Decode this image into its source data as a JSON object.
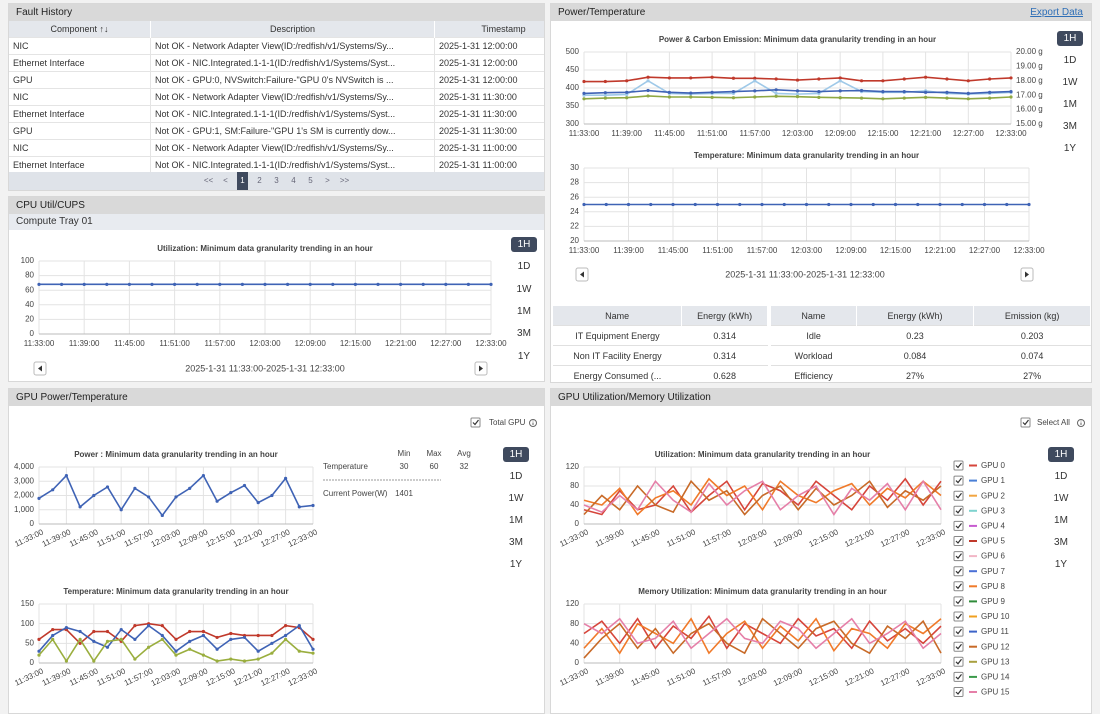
{
  "fault_history": {
    "title": "Fault History",
    "columns": [
      "Component ↑↓",
      "Description",
      "Timestamp"
    ],
    "rows": [
      [
        "NIC",
        "Not OK - Network Adapter View(ID:/redfish/v1/Systems/Sy...",
        "2025-1-31 12:00:00"
      ],
      [
        "Ethernet Interface",
        "Not OK - NIC.Integrated.1-1-1(ID:/redfish/v1/Systems/Syst...",
        "2025-1-31 12:00:00"
      ],
      [
        "GPU",
        "Not OK - GPU:0, NVSwitch:Failure-\"GPU 0's NVSwitch is ...",
        "2025-1-31 12:00:00"
      ],
      [
        "NIC",
        "Not OK - Network Adapter View(ID:/redfish/v1/Systems/Sy...",
        "2025-1-31 11:30:00"
      ],
      [
        "Ethernet Interface",
        "Not OK - NIC.Integrated.1-1-1(ID:/redfish/v1/Systems/Syst...",
        "2025-1-31 11:30:00"
      ],
      [
        "GPU",
        "Not OK - GPU:1, SM:Failure-\"GPU 1's SM is currently dow...",
        "2025-1-31 11:30:00"
      ],
      [
        "NIC",
        "Not OK - Network Adapter View(ID:/redfish/v1/Systems/Sy...",
        "2025-1-31 11:00:00"
      ],
      [
        "Ethernet Interface",
        "Not OK - NIC.Integrated.1-1-1(ID:/redfish/v1/Systems/Syst...",
        "2025-1-31 11:00:00"
      ]
    ],
    "pagination": [
      "<<",
      "<",
      "1",
      "2",
      "3",
      "4",
      "5",
      ">",
      ">>"
    ],
    "current_page": "1"
  },
  "cpu": {
    "title": "CPU Util/CUPS",
    "subtitle": "Compute Tray 01",
    "ranges": [
      "1H",
      "1D",
      "1W",
      "1M",
      "3M",
      "1Y"
    ],
    "selected": "1H",
    "period": "2025-1-31 11:33:00-2025-1-31 12:33:00",
    "chart": {
      "type": "line",
      "title": "Utilization: Minimum data granularity trending in an hour",
      "categories": [
        "11:33:00",
        null,
        "11:39:00",
        null,
        "11:45:00",
        null,
        "11:51:00",
        null,
        "11:57:00",
        null,
        "12:03:00",
        null,
        "12:09:00",
        null,
        "12:15:00",
        null,
        "12:21:00",
        null,
        "12:27:00",
        null,
        "12:33:00"
      ],
      "series": [
        {
          "color": "#3f63b5",
          "values": [
            68,
            68,
            68,
            68,
            68,
            68,
            68,
            68,
            68,
            68,
            68,
            68,
            68,
            68,
            68,
            68,
            68,
            68,
            68,
            68,
            68
          ]
        }
      ],
      "ylim": [
        0,
        100
      ],
      "yticks": [
        0,
        20,
        40,
        60,
        80,
        100
      ],
      "grid": true,
      "markers": true
    }
  },
  "power_temp": {
    "title": "Power/Temperature",
    "export": "Export Data",
    "ranges": [
      "1H",
      "1D",
      "1W",
      "1M",
      "3M",
      "1Y"
    ],
    "selected": "1H",
    "period": "2025-1-31 11:33:00-2025-1-31 12:33:00",
    "power_chart": {
      "type": "line",
      "title": "Power & Carbon Emission: Minimum data granularity trending in an hour",
      "categories": [
        "11:33:00",
        null,
        "11:39:00",
        null,
        "11:45:00",
        null,
        "11:51:00",
        null,
        "11:57:00",
        null,
        "12:03:00",
        null,
        "12:09:00",
        null,
        "12:15:00",
        null,
        "12:21:00",
        null,
        "12:27:00",
        null,
        "12:33:00"
      ],
      "series": [
        {
          "color": "#c0392b",
          "values": [
            418,
            418,
            420,
            430,
            428,
            428,
            430,
            427,
            427,
            425,
            422,
            425,
            428,
            420,
            420,
            425,
            430,
            425,
            420,
            425,
            428
          ]
        },
        {
          "color": "#9fc9e8",
          "values": [
            380,
            380,
            382,
            420,
            385,
            383,
            385,
            385,
            420,
            385,
            383,
            385,
            420,
            390,
            388,
            388,
            392,
            385,
            383,
            385,
            388
          ]
        },
        {
          "color": "#3f63b5",
          "values": [
            385,
            387,
            388,
            393,
            388,
            386,
            388,
            390,
            392,
            395,
            392,
            390,
            392,
            393,
            390,
            390,
            388,
            388,
            385,
            388,
            390
          ]
        },
        {
          "color": "#8fa843",
          "values": [
            370,
            372,
            373,
            378,
            375,
            375,
            374,
            373,
            375,
            377,
            376,
            374,
            373,
            372,
            370,
            372,
            374,
            372,
            370,
            372,
            375
          ]
        }
      ],
      "ylim": [
        300,
        500
      ],
      "yticks": [
        300,
        350,
        400,
        450,
        500
      ],
      "y2lim": [
        15,
        20
      ],
      "y2ticks": [
        {
          "value": 15,
          "label": "15.00 g"
        },
        {
          "value": 16,
          "label": "16.00 g"
        },
        {
          "value": 17,
          "label": "17.00 g"
        },
        {
          "value": 18,
          "label": "18.00 g"
        },
        {
          "value": 19,
          "label": "19.00 g"
        },
        {
          "value": 20,
          "label": "20.00 g"
        }
      ],
      "grid": true,
      "markers": true
    },
    "temp_chart": {
      "type": "line",
      "title": "Temperature: Minimum data granularity trending in an hour",
      "categories": [
        "11:33:00",
        null,
        "11:39:00",
        null,
        "11:45:00",
        null,
        "11:51:00",
        null,
        "11:57:00",
        null,
        "12:03:00",
        null,
        "12:09:00",
        null,
        "12:15:00",
        null,
        "12:21:00",
        null,
        "12:27:00",
        null,
        "12:33:00"
      ],
      "series": [
        {
          "color": "#3f63b5",
          "values": [
            25,
            25,
            25,
            25,
            25,
            25,
            25,
            25,
            25,
            25,
            25,
            25,
            25,
            25,
            25,
            25,
            25,
            25,
            25,
            25,
            25
          ]
        }
      ],
      "ylim": [
        20,
        30
      ],
      "yticks": [
        20,
        22,
        24,
        26,
        28,
        30
      ],
      "grid": true,
      "markers": true
    },
    "energy_table": {
      "columns": [
        "Name",
        "Energy (kWh)"
      ],
      "rows": [
        [
          "IT Equipment Energy",
          "0.314"
        ],
        [
          "Non IT Facility Energy",
          "0.314"
        ],
        [
          "Energy Consumed (...",
          "0.628"
        ]
      ]
    },
    "emission_table": {
      "columns": [
        "Name",
        "Energy (kWh)",
        "Emission (kg)"
      ],
      "rows": [
        [
          "Idle",
          "0.23",
          "0.203"
        ],
        [
          "Workload",
          "0.084",
          "0.074"
        ],
        [
          "Efficiency",
          "27%",
          "27%"
        ]
      ]
    }
  },
  "gpu_power": {
    "title": "GPU Power/Temperature",
    "checkbox": "Total GPU",
    "ranges": [
      "1H",
      "1D",
      "1W",
      "1M",
      "3M",
      "1Y"
    ],
    "selected": "1H",
    "stats": {
      "header": [
        "Min",
        "Max",
        "Avg"
      ],
      "rows": [
        [
          "Temperature",
          "30",
          "60",
          "32"
        ],
        [
          "Current Power(W)",
          "1401"
        ]
      ]
    },
    "power_chart": {
      "type": "line",
      "title": "Power : Minimum data granularity trending in an hour",
      "categories": [
        "11:33:00",
        null,
        "11:39:00",
        null,
        "11:45:00",
        null,
        "11:51:00",
        null,
        "11:57:00",
        null,
        "12:03:00",
        null,
        "12:09:00",
        null,
        "12:15:00",
        null,
        "12:21:00",
        null,
        "12:27:00",
        null,
        "12:33:00"
      ],
      "series": [
        {
          "color": "#3f63b5",
          "values": [
            1800,
            2400,
            3400,
            1200,
            2000,
            2600,
            1000,
            2500,
            1900,
            600,
            1900,
            2500,
            3400,
            1600,
            2200,
            2700,
            1500,
            2000,
            3200,
            1200,
            1300
          ]
        }
      ],
      "ylim": [
        0,
        4000
      ],
      "yticks": [
        0,
        {
          "value": 1000,
          "label": "1,000"
        },
        {
          "value": 2000,
          "label": "2,000"
        },
        {
          "value": 3000,
          "label": "3,000"
        },
        {
          "value": 4000,
          "label": "4,000"
        }
      ],
      "grid": true,
      "markers": true
    },
    "temp_chart": {
      "type": "line",
      "title": "Temperature: Minimum data granularity trending in an hour",
      "categories": [
        "11:33:00",
        null,
        "11:39:00",
        null,
        "11:45:00",
        null,
        "11:51:00",
        null,
        "11:57:00",
        null,
        "12:03:00",
        null,
        "12:09:00",
        null,
        "12:15:00",
        null,
        "12:21:00",
        null,
        "12:27:00",
        null,
        "12:33:00"
      ],
      "series": [
        {
          "color": "#c0392b",
          "values": [
            60,
            85,
            85,
            50,
            80,
            80,
            55,
            95,
            100,
            95,
            60,
            80,
            80,
            65,
            75,
            70,
            70,
            70,
            95,
            90,
            60
          ]
        },
        {
          "color": "#3f63b5",
          "values": [
            30,
            70,
            90,
            80,
            55,
            40,
            85,
            60,
            95,
            70,
            30,
            55,
            70,
            35,
            60,
            65,
            30,
            50,
            70,
            95,
            35
          ]
        },
        {
          "color": "#9aae3e",
          "values": [
            20,
            60,
            5,
            60,
            5,
            55,
            60,
            10,
            40,
            60,
            20,
            35,
            20,
            5,
            10,
            5,
            10,
            25,
            60,
            30,
            25
          ]
        }
      ],
      "ylim": [
        0,
        150
      ],
      "yticks": [
        0,
        50,
        100,
        150
      ],
      "grid": true,
      "markers": true
    }
  },
  "gpu_util": {
    "title": "GPU Utilization/Memory Utilization",
    "checkbox": "Select All",
    "ranges": [
      "1H",
      "1D",
      "1W",
      "1M",
      "3M",
      "1Y"
    ],
    "selected": "1H",
    "legend": [
      {
        "name": "GPU 0",
        "color": "#d6453b"
      },
      {
        "name": "GPU 1",
        "color": "#4a7fd6"
      },
      {
        "name": "GPU 2",
        "color": "#f2a541"
      },
      {
        "name": "GPU 3",
        "color": "#7fd3cf"
      },
      {
        "name": "GPU 4",
        "color": "#c75bd0"
      },
      {
        "name": "GPU 5",
        "color": "#c0392b"
      },
      {
        "name": "GPU 6",
        "color": "#f2b6c6"
      },
      {
        "name": "GPU 7",
        "color": "#4a6fd6"
      },
      {
        "name": "GPU 8",
        "color": "#f07a2a"
      },
      {
        "name": "GPU 9",
        "color": "#2e8b3a"
      },
      {
        "name": "GPU 10",
        "color": "#f0a020"
      },
      {
        "name": "GPU 11",
        "color": "#3c63c8"
      },
      {
        "name": "GPU 12",
        "color": "#c86a28"
      },
      {
        "name": "GPU 13",
        "color": "#a8a040"
      },
      {
        "name": "GPU 14",
        "color": "#3a9a4a"
      },
      {
        "name": "GPU 15",
        "color": "#e57fa8"
      }
    ],
    "util_chart": {
      "type": "line",
      "title": "Utilization: Minimum data granularity trending in an hour",
      "categories": [
        "11:33:00",
        null,
        "11:39:00",
        null,
        "11:45:00",
        null,
        "11:51:00",
        null,
        "11:57:00",
        null,
        "12:03:00",
        null,
        "12:09:00",
        null,
        "12:15:00",
        null,
        "12:21:00",
        null,
        "12:27:00",
        null,
        "12:33:00"
      ],
      "series": [
        {
          "name": "GPU 0",
          "color": "#d6453b",
          "values": [
            30,
            20,
            70,
            30,
            40,
            80,
            25,
            60,
            90,
            30,
            85,
            70,
            40,
            90,
            60,
            30,
            80,
            50,
            95,
            40,
            90
          ]
        },
        {
          "name": "GPU 8",
          "color": "#f07a2a",
          "values": [
            50,
            40,
            75,
            20,
            55,
            70,
            40,
            95,
            60,
            80,
            30,
            90,
            60,
            45,
            70,
            85,
            40,
            75,
            55,
            90,
            60
          ]
        },
        {
          "name": "GPU 12",
          "color": "#c86a28",
          "values": [
            20,
            60,
            30,
            80,
            40,
            25,
            90,
            50,
            70,
            20,
            60,
            80,
            30,
            75,
            40,
            60,
            90,
            35,
            70,
            50,
            80
          ]
        },
        {
          "name": "GPU 15",
          "color": "#e57fa8",
          "values": [
            40,
            25,
            60,
            30,
            90,
            50,
            25,
            85,
            40,
            70,
            90,
            30,
            60,
            80,
            20,
            75,
            50,
            85,
            30,
            90,
            30
          ]
        }
      ],
      "ylim": [
        0,
        120
      ],
      "yticks": [
        0,
        40,
        80,
        120
      ],
      "grid": true,
      "markers": false
    },
    "mem_chart": {
      "type": "line",
      "title": "Memory Utilization: Minimum data granularity trending in an hour",
      "categories": [
        "11:33:00",
        null,
        "11:39:00",
        null,
        "11:45:00",
        null,
        "11:51:00",
        null,
        "11:57:00",
        null,
        "12:03:00",
        null,
        "12:09:00",
        null,
        "12:15:00",
        null,
        "12:21:00",
        null,
        "12:27:00",
        null,
        "12:33:00"
      ],
      "series": [
        {
          "name": "GPU 0",
          "color": "#d6453b",
          "values": [
            60,
            85,
            40,
            90,
            30,
            75,
            50,
            95,
            30,
            80,
            60,
            40,
            90,
            55,
            70,
            30,
            85,
            45,
            70,
            40,
            75
          ]
        },
        {
          "name": "GPU 8",
          "color": "#f07a2a",
          "values": [
            30,
            70,
            20,
            80,
            60,
            40,
            90,
            20,
            60,
            85,
            30,
            75,
            45,
            90,
            25,
            70,
            60,
            30,
            80,
            60,
            90
          ]
        },
        {
          "name": "GPU 12",
          "color": "#c86a28",
          "values": [
            10,
            50,
            80,
            30,
            70,
            20,
            60,
            80,
            40,
            20,
            90,
            60,
            30,
            70,
            85,
            40,
            20,
            75,
            50,
            85,
            20
          ]
        },
        {
          "name": "GPU 15",
          "color": "#e57fa8",
          "values": [
            80,
            60,
            90,
            40,
            50,
            85,
            30,
            60,
            90,
            50,
            40,
            85,
            70,
            30,
            60,
            90,
            40,
            60,
            85,
            30,
            60
          ]
        }
      ],
      "ylim": [
        0,
        120
      ],
      "yticks": [
        0,
        40,
        80,
        120
      ],
      "grid": true,
      "markers": false
    }
  }
}
